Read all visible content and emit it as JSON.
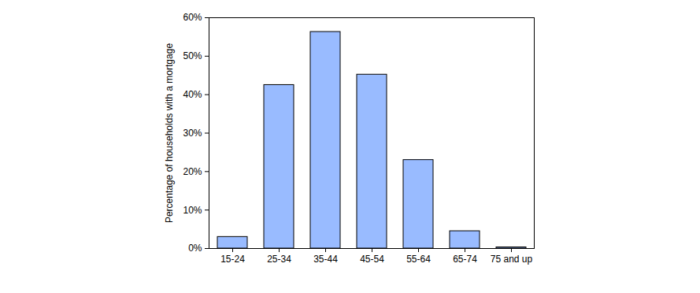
{
  "chart_data": {
    "type": "bar",
    "y_label": "Percentage of households with a mortgage",
    "categories": [
      "15-24",
      "25-34",
      "35-44",
      "45-54",
      "55-64",
      "65-74",
      "75 and up"
    ],
    "values": [
      3,
      42.5,
      56.3,
      45.2,
      23,
      4.5,
      0.3
    ],
    "color": "#99bbff",
    "ylim": [
      0,
      60
    ],
    "yticks": [
      {
        "value": 0,
        "label": "0%"
      },
      {
        "value": 10,
        "label": "10%"
      },
      {
        "value": 20,
        "label": "20%"
      },
      {
        "value": 30,
        "label": "30%"
      },
      {
        "value": 40,
        "label": "40%"
      },
      {
        "value": 50,
        "label": "50%"
      },
      {
        "value": 60,
        "label": "60%"
      }
    ],
    "grid": false
  }
}
